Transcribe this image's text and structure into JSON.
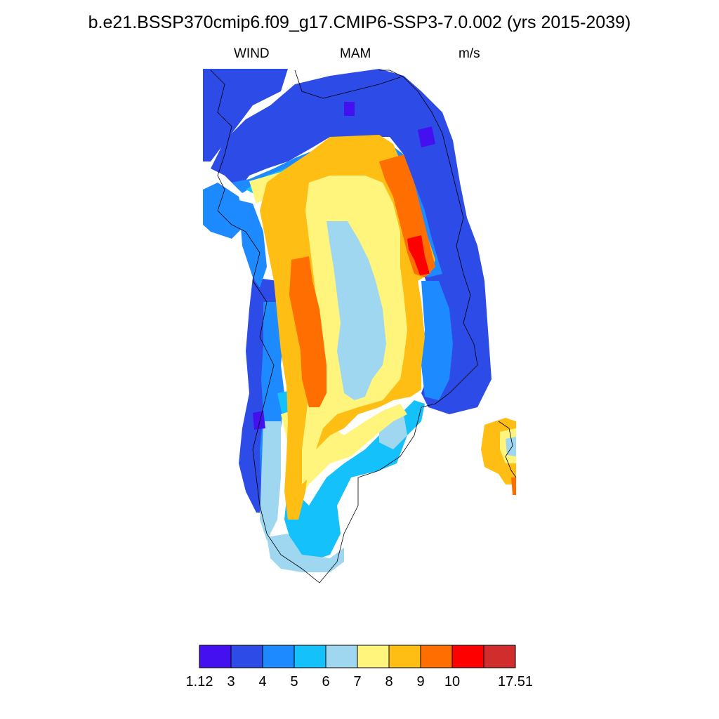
{
  "title": "b.e21.BSSP370cmip6.f09_g17.CMIP6-SSP3-7.0.002 (yrs 2015-2039)",
  "subtitle": {
    "variable": "WIND",
    "season": "MAM",
    "units": "m/s"
  },
  "map": {
    "region": "Greenland",
    "palette": {
      "c1": "#4510f0",
      "c2": "#2d4be6",
      "c3": "#1e8aff",
      "c4": "#14c1fa",
      "c5": "#a0d7f0",
      "c6": "#fff57d",
      "c7": "#ffbe14",
      "c8": "#ff6e00",
      "c9": "#ff0000",
      "c10": "#d22d2d"
    },
    "features": [
      "coastline-outline",
      "wind-speed-field"
    ],
    "max_wind_location": "east-central coast"
  },
  "colorbar": {
    "colors": [
      "#4510f0",
      "#2d4be6",
      "#1e8aff",
      "#14c1fa",
      "#a0d7f0",
      "#fff57d",
      "#ffbe14",
      "#ff6e00",
      "#ff0000",
      "#d22d2d"
    ],
    "labels": [
      "1.12",
      "3",
      "4",
      "5",
      "6",
      "7",
      "8",
      "9",
      "10",
      "17.51"
    ]
  }
}
